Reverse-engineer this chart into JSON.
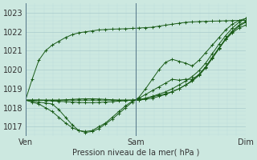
{
  "bg_color": "#cce8e0",
  "grid_color_major": "#aacccc",
  "grid_color_minor": "#bbdddd",
  "line_color": "#1a5c18",
  "marker_color": "#1a5c18",
  "title": "Pression niveau de la mer( hPa )",
  "xlabel_days": [
    "Ven",
    "Sam",
    "Dim"
  ],
  "ylabel_ticks": [
    1017,
    1018,
    1019,
    1020,
    1021,
    1022,
    1023
  ],
  "ylim": [
    1016.5,
    1023.5
  ],
  "xlim": [
    0,
    96
  ],
  "day_positions": [
    0,
    48,
    96
  ],
  "series": [
    [
      1018.4,
      1018.35,
      1018.3,
      1018.25,
      1018.2,
      1017.9,
      1017.5,
      1017.1,
      1016.8,
      1016.7,
      1016.75,
      1016.9,
      1017.15,
      1017.4,
      1017.7,
      1018.0,
      1018.3,
      1018.55,
      1019.0,
      1019.5,
      1020.0,
      1020.4,
      1020.55,
      1020.45,
      1020.35,
      1020.2,
      1020.5,
      1020.9,
      1021.3,
      1021.7,
      1022.1,
      1022.4,
      1022.6,
      1022.7
    ],
    [
      1018.4,
      1018.3,
      1018.2,
      1018.0,
      1017.8,
      1017.5,
      1017.2,
      1016.95,
      1016.8,
      1016.75,
      1016.8,
      1017.0,
      1017.2,
      1017.5,
      1017.8,
      1018.1,
      1018.35,
      1018.5,
      1018.7,
      1018.9,
      1019.1,
      1019.3,
      1019.5,
      1019.45,
      1019.5,
      1019.5,
      1019.75,
      1020.15,
      1020.65,
      1021.15,
      1021.6,
      1021.95,
      1022.2,
      1022.35
    ],
    [
      1018.4,
      1018.4,
      1018.4,
      1018.4,
      1018.4,
      1018.4,
      1018.4,
      1018.4,
      1018.4,
      1018.4,
      1018.4,
      1018.4,
      1018.4,
      1018.4,
      1018.4,
      1018.4,
      1018.4,
      1018.4,
      1018.45,
      1018.5,
      1018.6,
      1018.7,
      1018.85,
      1019.0,
      1019.2,
      1019.45,
      1019.75,
      1020.15,
      1020.65,
      1021.15,
      1021.65,
      1022.05,
      1022.35,
      1022.55
    ],
    [
      1018.4,
      1018.4,
      1018.4,
      1018.38,
      1018.36,
      1018.34,
      1018.32,
      1018.3,
      1018.28,
      1018.27,
      1018.27,
      1018.28,
      1018.3,
      1018.32,
      1018.35,
      1018.37,
      1018.4,
      1018.42,
      1018.5,
      1018.58,
      1018.66,
      1018.74,
      1018.85,
      1019.0,
      1019.2,
      1019.4,
      1019.7,
      1020.1,
      1020.6,
      1021.1,
      1021.6,
      1022.0,
      1022.3,
      1022.5
    ],
    [
      1018.4,
      1018.4,
      1018.4,
      1018.4,
      1018.4,
      1018.4,
      1018.42,
      1018.44,
      1018.46,
      1018.47,
      1018.47,
      1018.46,
      1018.44,
      1018.42,
      1018.4,
      1018.4,
      1018.4,
      1018.42,
      1018.5,
      1018.6,
      1018.72,
      1018.84,
      1019.0,
      1019.2,
      1019.4,
      1019.65,
      1019.95,
      1020.35,
      1020.85,
      1021.35,
      1021.8,
      1022.2,
      1022.5,
      1022.7
    ],
    [
      1018.4,
      1019.5,
      1020.5,
      1021.0,
      1021.3,
      1021.5,
      1021.7,
      1021.85,
      1021.95,
      1022.0,
      1022.05,
      1022.1,
      1022.12,
      1022.14,
      1022.15,
      1022.16,
      1022.18,
      1022.2,
      1022.22,
      1022.24,
      1022.3,
      1022.35,
      1022.4,
      1022.45,
      1022.5,
      1022.52,
      1022.54,
      1022.55,
      1022.56,
      1022.57,
      1022.58,
      1022.59,
      1022.6,
      1022.6
    ]
  ]
}
